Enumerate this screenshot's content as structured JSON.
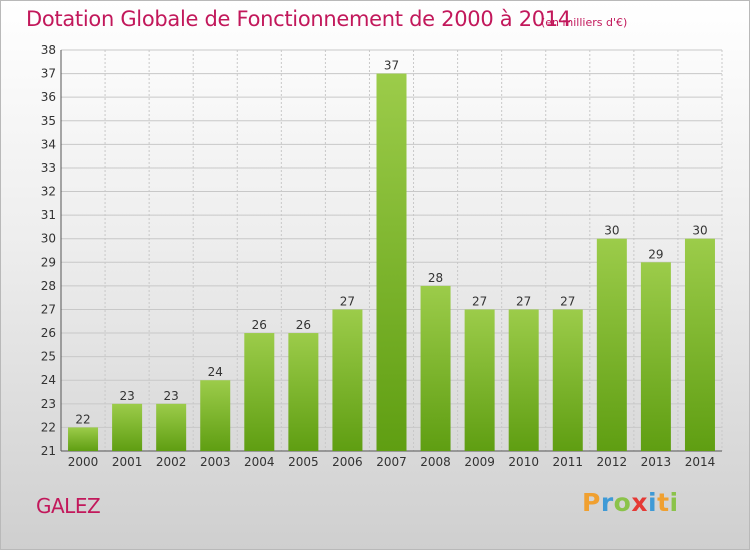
{
  "header": {
    "title": "Dotation Globale de Fonctionnement de 2000 à 2014",
    "unit": "(en milliers d'€)"
  },
  "footer": {
    "commune": "GALEZ",
    "logo": {
      "letters": [
        "P",
        "r",
        "o",
        "x",
        "i",
        "t",
        "i"
      ],
      "text": "Proxiti"
    }
  },
  "colors": {
    "title": "#c2185b",
    "bar_top": "#9ccc4a",
    "bar_bottom": "#5f9e12",
    "grid": "#c8c8c8"
  },
  "chart_data": {
    "type": "bar",
    "title": "Dotation Globale de Fonctionnement de 2000 à 2014",
    "subtitle": "(en milliers d'€)",
    "xlabel": "",
    "ylabel": "",
    "categories": [
      "2000",
      "2001",
      "2002",
      "2003",
      "2004",
      "2005",
      "2006",
      "2007",
      "2008",
      "2009",
      "2010",
      "2011",
      "2012",
      "2013",
      "2014"
    ],
    "values": [
      22,
      23,
      23,
      24,
      26,
      26,
      27,
      37,
      28,
      27,
      27,
      27,
      30,
      29,
      30
    ],
    "value_labels": [
      "22",
      "23",
      "23",
      "24",
      "26",
      "26",
      "27",
      "37",
      "28",
      "27",
      "27",
      "27",
      "30",
      "29",
      "30"
    ],
    "ylim": [
      21,
      38
    ],
    "yticks": [
      "21",
      "22",
      "23",
      "24",
      "25",
      "26",
      "27",
      "28",
      "29",
      "30",
      "31",
      "32",
      "33",
      "34",
      "35",
      "36",
      "37",
      "38"
    ],
    "grid": true,
    "legend": "none"
  }
}
